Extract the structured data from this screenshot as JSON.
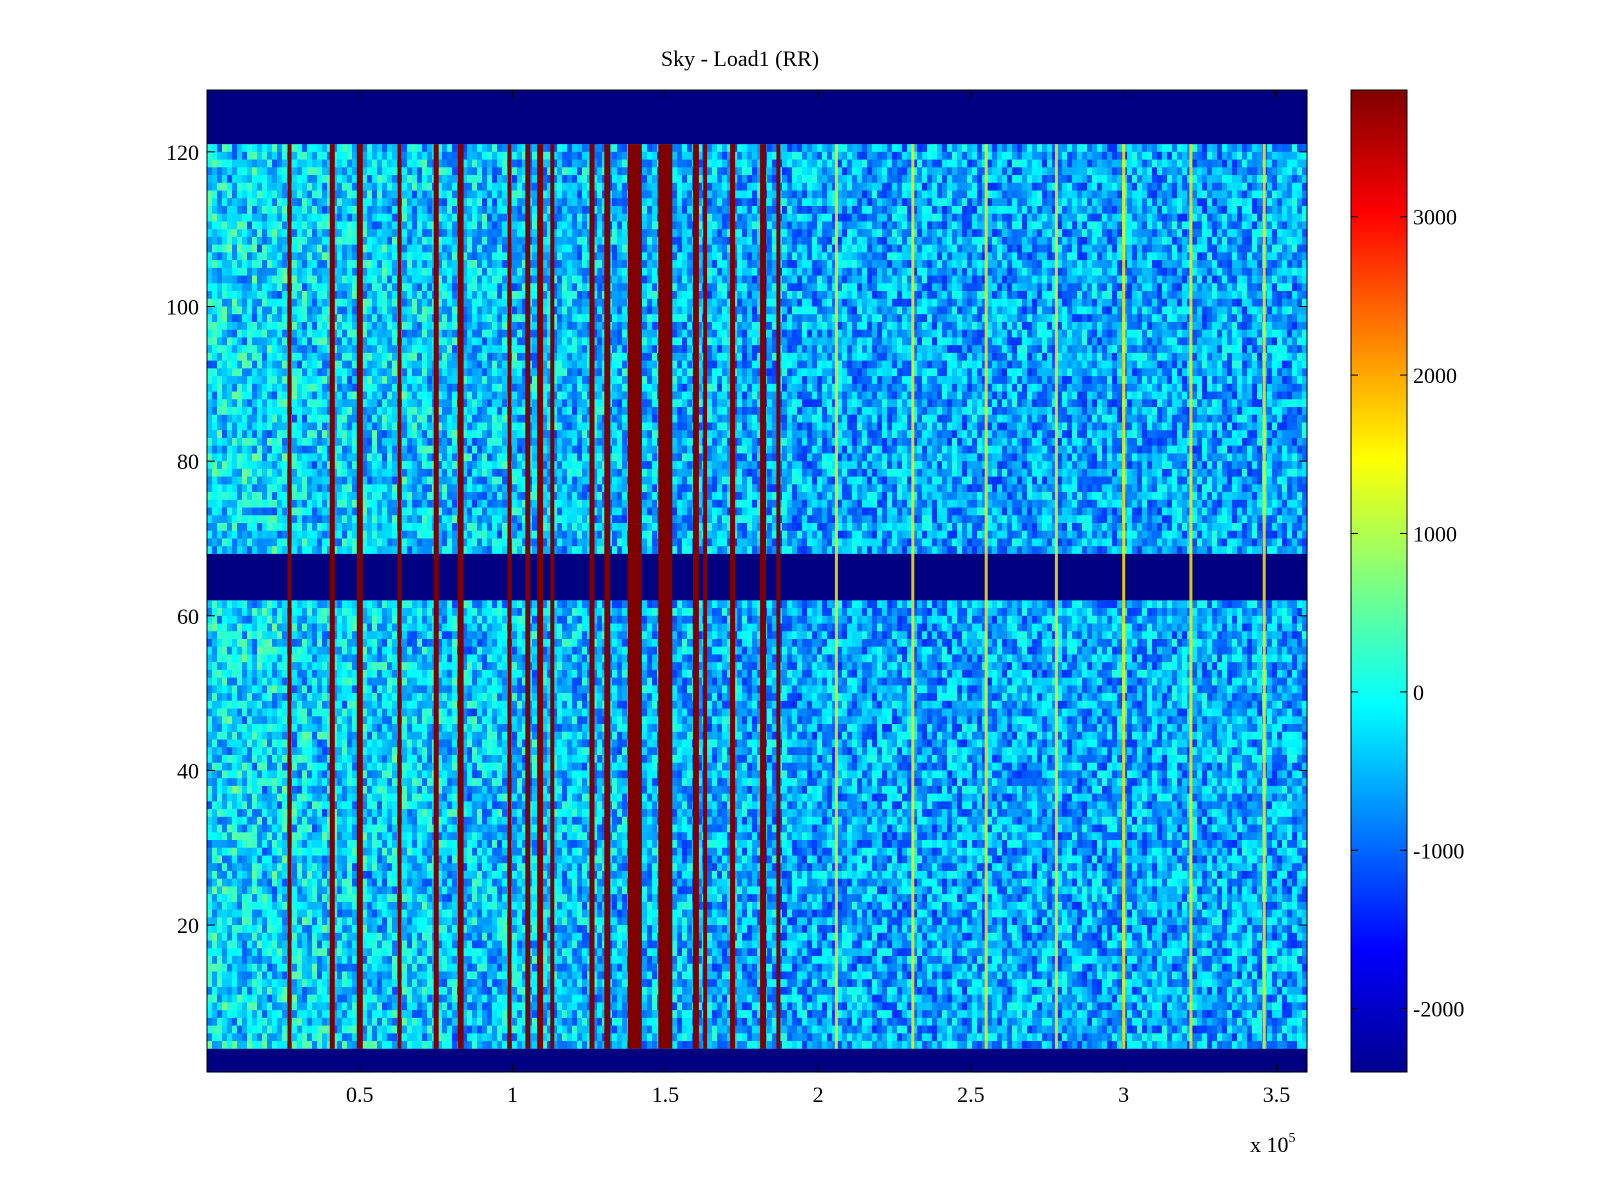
{
  "chart_data": {
    "type": "heatmap",
    "title": "Sky - Load1 (RR)",
    "xlabel": "",
    "ylabel": "",
    "x_multiplier_label": "x 10",
    "x_multiplier_exponent": "5",
    "xlim": [
      0.0,
      3.6
    ],
    "ylim": [
      1,
      128
    ],
    "x_ticks": [
      0.5,
      1,
      1.5,
      2,
      2.5,
      3,
      3.5
    ],
    "x_tick_labels": [
      "0.5",
      "1",
      "1.5",
      "2",
      "2.5",
      "3",
      "3.5"
    ],
    "y_ticks": [
      20,
      40,
      60,
      80,
      100,
      120
    ],
    "y_tick_labels": [
      "20",
      "40",
      "60",
      "80",
      "100",
      "120"
    ],
    "colormap": "jet",
    "colorbar": {
      "range": [
        -2400,
        3800
      ],
      "ticks": [
        3000,
        2000,
        1000,
        0,
        -1000,
        -2000
      ],
      "tick_labels": [
        "3000",
        "2000",
        "1000",
        "0",
        "-1000",
        "-2000"
      ]
    },
    "masked_row_bands": [
      {
        "y_range": [
          1,
          4
        ],
        "value": -2400
      },
      {
        "y_range": [
          62,
          68
        ],
        "value": -2400
      },
      {
        "y_range": [
          121,
          128
        ],
        "value": -2400
      }
    ],
    "background_value": -600,
    "strong_vertical_lines_x": [
      0.27,
      0.41,
      0.5,
      0.63,
      0.75,
      0.83,
      0.99,
      1.05,
      1.09,
      1.13,
      1.26,
      1.31,
      1.4,
      1.5,
      1.6,
      1.63,
      1.72,
      1.82,
      1.87
    ],
    "weak_vertical_lines_x": [
      2.06,
      2.31,
      2.55,
      2.78,
      3.0,
      3.22,
      3.46
    ],
    "grid": false,
    "legend": "colorbar-right"
  }
}
